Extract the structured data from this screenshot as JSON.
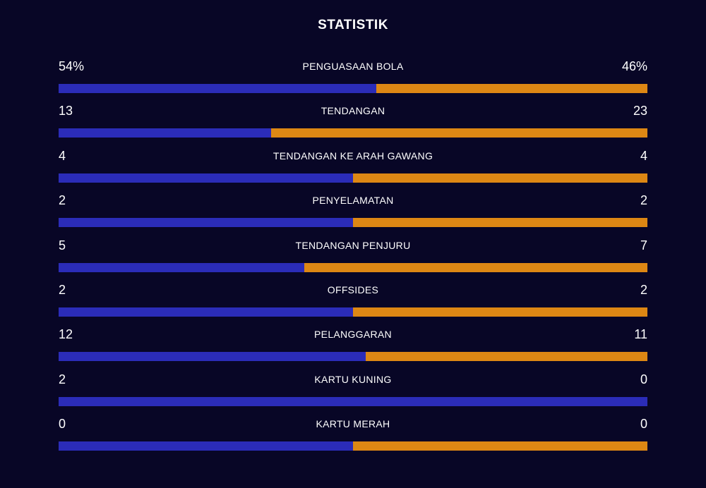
{
  "header": {
    "title": "STATISTIK"
  },
  "colors": {
    "background": "#080626",
    "home": "#2b2cb8",
    "away": "#dd8714",
    "text": "#ffffff"
  },
  "stats": [
    {
      "label": "PENGUASAAN BOLA",
      "left_display": "54%",
      "right_display": "46%",
      "left_value": 54,
      "right_value": 46
    },
    {
      "label": "TENDANGAN",
      "left_display": "13",
      "right_display": "23",
      "left_value": 13,
      "right_value": 23
    },
    {
      "label": "TENDANGAN KE ARAH GAWANG",
      "left_display": "4",
      "right_display": "4",
      "left_value": 4,
      "right_value": 4
    },
    {
      "label": "PENYELAMATAN",
      "left_display": "2",
      "right_display": "2",
      "left_value": 2,
      "right_value": 2
    },
    {
      "label": "TENDANGAN PENJURU",
      "left_display": "5",
      "right_display": "7",
      "left_value": 5,
      "right_value": 7
    },
    {
      "label": "OFFSIDES",
      "left_display": "2",
      "right_display": "2",
      "left_value": 2,
      "right_value": 2
    },
    {
      "label": "PELANGGARAN",
      "left_display": "12",
      "right_display": "11",
      "left_value": 12,
      "right_value": 11
    },
    {
      "label": "KARTU KUNING",
      "left_display": "2",
      "right_display": "0",
      "left_value": 2,
      "right_value": 0
    },
    {
      "label": "KARTU MERAH",
      "left_display": "0",
      "right_display": "0",
      "left_value": 0,
      "right_value": 0
    }
  ]
}
